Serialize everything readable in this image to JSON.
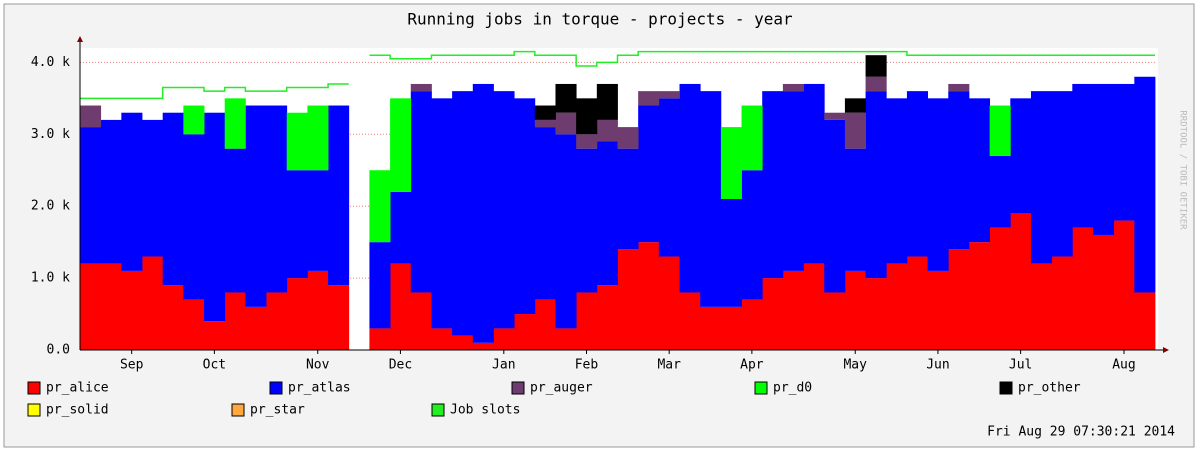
{
  "chart_data": {
    "type": "stacked_area",
    "title": "Running jobs in torque - projects - year",
    "watermark": "RRDTOOL / TOBI OETIKER",
    "timestamp": "Fri Aug 29 07:30:21 2014",
    "categories": [
      null,
      null,
      "Sep",
      null,
      null,
      null,
      "Oct",
      null,
      null,
      null,
      null,
      "Nov",
      null,
      null,
      null,
      "Dec",
      null,
      null,
      null,
      null,
      "Jan",
      null,
      null,
      null,
      "Feb",
      null,
      null,
      null,
      "Mar",
      null,
      null,
      null,
      "Apr",
      null,
      null,
      null,
      null,
      "May",
      null,
      null,
      null,
      "Jun",
      null,
      null,
      null,
      "Jul",
      null,
      null,
      null,
      null,
      "Aug",
      null
    ],
    "ylim": [
      0,
      4200
    ],
    "yticks": [
      {
        "value": 0,
        "label": "0.0"
      },
      {
        "value": 1000,
        "label": "1.0 k"
      },
      {
        "value": 2000,
        "label": "2.0 k"
      },
      {
        "value": 3000,
        "label": "3.0 k"
      },
      {
        "value": 4000,
        "label": "4.0 k"
      }
    ],
    "grid": true,
    "series": [
      {
        "name": "pr_alice",
        "color": "#ff0000",
        "values": [
          1200,
          1200,
          1100,
          1300,
          900,
          700,
          400,
          800,
          600,
          800,
          1000,
          1100,
          900,
          null,
          300,
          1200,
          800,
          300,
          200,
          100,
          300,
          500,
          700,
          300,
          800,
          900,
          1400,
          1500,
          1300,
          800,
          600,
          600,
          700,
          1000,
          1100,
          1200,
          800,
          1100,
          1000,
          1200,
          1300,
          1100,
          1400,
          1500,
          1700,
          1900,
          1200,
          1300,
          1700,
          1600,
          1800,
          800
        ]
      },
      {
        "name": "pr_atlas",
        "color": "#0000ff",
        "values": [
          1900,
          2000,
          2200,
          1900,
          2400,
          2300,
          2900,
          2000,
          2800,
          2600,
          1500,
          1400,
          2500,
          null,
          1200,
          1000,
          2800,
          3200,
          3400,
          3600,
          3300,
          3000,
          2400,
          2700,
          2000,
          2000,
          1400,
          1900,
          2200,
          2900,
          3000,
          1500,
          1800,
          2600,
          2500,
          2500,
          2400,
          1700,
          2600,
          2300,
          2300,
          2400,
          2200,
          2000,
          1000,
          1600,
          2400,
          2300,
          2000,
          2100,
          1900,
          3000
        ]
      },
      {
        "name": "pr_auger",
        "color": "#6e3c6e",
        "values": [
          300,
          0,
          0,
          0,
          0,
          0,
          0,
          0,
          0,
          0,
          0,
          0,
          0,
          null,
          0,
          0,
          100,
          0,
          0,
          0,
          0,
          0,
          100,
          300,
          200,
          300,
          300,
          200,
          100,
          0,
          0,
          0,
          0,
          0,
          100,
          0,
          100,
          500,
          200,
          0,
          0,
          0,
          100,
          0,
          0,
          0,
          0,
          0,
          0,
          0,
          0,
          0
        ]
      },
      {
        "name": "pr_d0",
        "color": "#00ff00",
        "values": [
          0,
          0,
          0,
          0,
          0,
          400,
          0,
          700,
          0,
          0,
          800,
          900,
          0,
          null,
          1000,
          1300,
          0,
          0,
          0,
          0,
          0,
          0,
          0,
          0,
          0,
          0,
          0,
          0,
          0,
          0,
          0,
          1000,
          900,
          0,
          0,
          0,
          0,
          0,
          0,
          0,
          0,
          0,
          0,
          0,
          700,
          0,
          0,
          0,
          0,
          0,
          0,
          0
        ]
      },
      {
        "name": "pr_other",
        "color": "#000000",
        "values": [
          0,
          0,
          0,
          0,
          0,
          0,
          0,
          0,
          0,
          0,
          0,
          0,
          0,
          null,
          0,
          0,
          0,
          0,
          0,
          0,
          0,
          0,
          200,
          400,
          500,
          500,
          0,
          0,
          0,
          0,
          0,
          0,
          0,
          0,
          0,
          0,
          0,
          200,
          300,
          0,
          0,
          0,
          0,
          0,
          0,
          0,
          0,
          0,
          0,
          0,
          0,
          0
        ]
      },
      {
        "name": "pr_solid",
        "color": "#ffff00",
        "values": [
          0,
          0,
          0,
          0,
          0,
          0,
          0,
          0,
          0,
          0,
          0,
          0,
          0,
          null,
          0,
          0,
          0,
          0,
          0,
          0,
          0,
          0,
          0,
          0,
          0,
          0,
          0,
          0,
          0,
          0,
          0,
          0,
          0,
          0,
          0,
          0,
          0,
          0,
          0,
          0,
          0,
          0,
          0,
          0,
          0,
          0,
          0,
          0,
          0,
          0,
          0,
          0
        ]
      },
      {
        "name": "pr_star",
        "color": "#ffa840",
        "values": [
          0,
          0,
          0,
          0,
          0,
          0,
          0,
          0,
          0,
          0,
          0,
          0,
          0,
          null,
          0,
          0,
          0,
          0,
          0,
          0,
          0,
          0,
          0,
          0,
          0,
          0,
          0,
          0,
          0,
          0,
          0,
          0,
          0,
          0,
          0,
          0,
          0,
          0,
          0,
          0,
          0,
          0,
          0,
          0,
          0,
          0,
          0,
          0,
          0,
          0,
          0,
          0
        ]
      },
      {
        "name": "Job slots",
        "color": "#22ee22",
        "type": "line",
        "values": [
          3500,
          3500,
          3500,
          3500,
          3650,
          3650,
          3600,
          3650,
          3600,
          3600,
          3650,
          3650,
          3700,
          null,
          4100,
          4050,
          4050,
          4100,
          4100,
          4100,
          4100,
          4150,
          4100,
          4100,
          3950,
          4000,
          4100,
          4150,
          4150,
          4150,
          4150,
          4150,
          4150,
          4150,
          4150,
          4150,
          4150,
          4150,
          4150,
          4150,
          4100,
          4100,
          4100,
          4100,
          4100,
          4100,
          4100,
          4100,
          4100,
          4100,
          4100,
          4100
        ]
      }
    ]
  }
}
